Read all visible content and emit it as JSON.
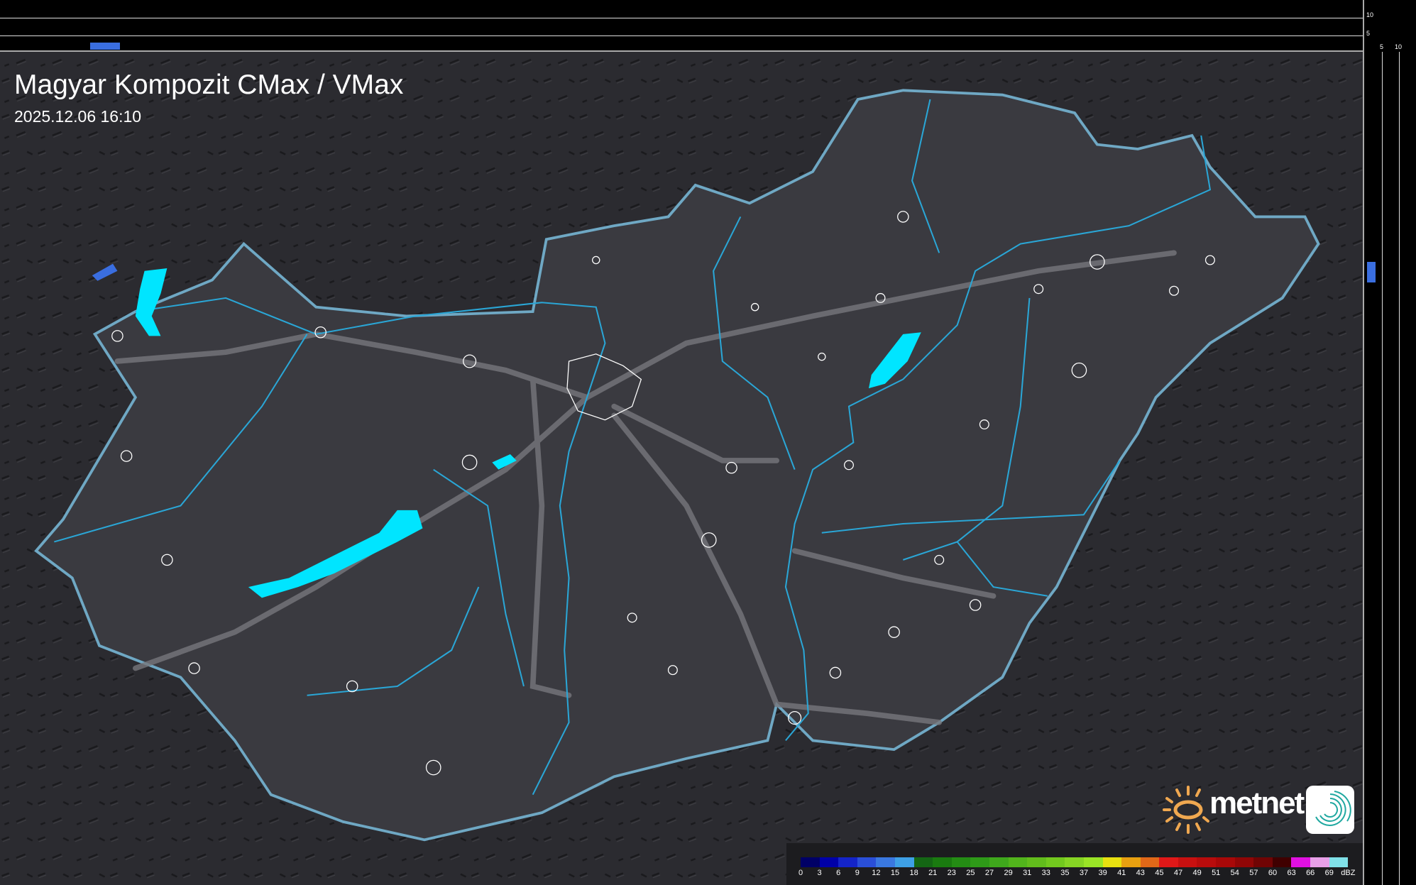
{
  "header": {
    "title": "Magyar Kompozit CMax / VMax",
    "timestamp": "2025.12.06 16:10"
  },
  "top_profile": {
    "ticks": [
      "10",
      "5"
    ],
    "echo_color": "#3a6ee0"
  },
  "side_profile": {
    "ticks": [
      "5",
      "10"
    ],
    "echo_color": "#3a6ee0"
  },
  "map": {
    "land_color": "#3a3a40",
    "border_color": "#6fa8c4",
    "river_color": "#2aa6d6",
    "lake_color": "#00e5ff",
    "road_color": "#77777c",
    "city_outline_color": "#ffffff"
  },
  "logo": {
    "brand": "metnet",
    "sun_color": "#f0a850"
  },
  "legend": {
    "unit": "dBZ",
    "labels": [
      "0",
      "3",
      "6",
      "9",
      "12",
      "15",
      "18",
      "21",
      "23",
      "25",
      "27",
      "29",
      "31",
      "33",
      "35",
      "37",
      "39",
      "41",
      "43",
      "45",
      "47",
      "49",
      "51",
      "54",
      "57",
      "60",
      "63",
      "66",
      "69"
    ],
    "colors": [
      "#000066",
      "#0000a8",
      "#1424c8",
      "#2a4fd8",
      "#3a78e0",
      "#3ea0e6",
      "#146614",
      "#1a7a10",
      "#248c14",
      "#2e9a18",
      "#3fa81c",
      "#52b41c",
      "#62bc1c",
      "#72c81e",
      "#86d424",
      "#9ae426",
      "#e8e010",
      "#e8a010",
      "#e06818",
      "#e01818",
      "#c81010",
      "#b80c0c",
      "#a80808",
      "#900606",
      "#700404",
      "#400000",
      "#e010e0",
      "#e8a0e8",
      "#80e0e8"
    ]
  }
}
